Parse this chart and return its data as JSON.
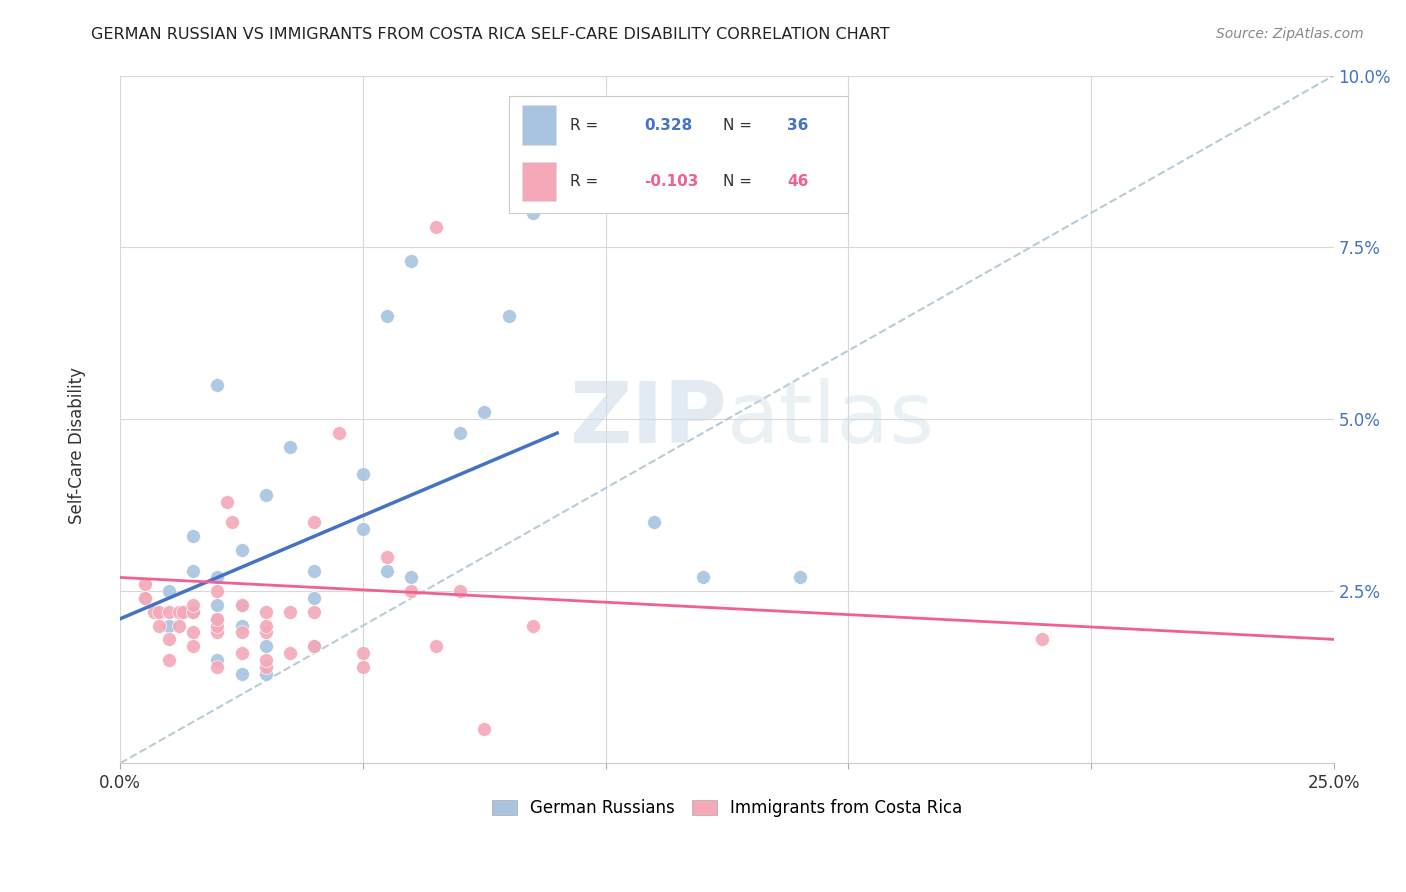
{
  "title": "GERMAN RUSSIAN VS IMMIGRANTS FROM COSTA RICA SELF-CARE DISABILITY CORRELATION CHART",
  "source": "Source: ZipAtlas.com",
  "ylabel": "Self-Care Disability",
  "xlim": [
    0.0,
    0.25
  ],
  "ylim": [
    0.0,
    0.1
  ],
  "xticks": [
    0.0,
    0.05,
    0.1,
    0.15,
    0.2,
    0.25
  ],
  "yticks": [
    0.0,
    0.025,
    0.05,
    0.075,
    0.1
  ],
  "xtick_labels": [
    "0.0%",
    "",
    "",
    "",
    "",
    "25.0%"
  ],
  "ytick_labels": [
    "",
    "2.5%",
    "5.0%",
    "7.5%",
    "10.0%"
  ],
  "color_blue": "#a8c4e0",
  "color_pink": "#f4a8b8",
  "line_blue": "#4472c4",
  "line_pink": "#f06090",
  "line_dash": "#b8ccd8",
  "background_color": "#ffffff",
  "grid_color": "#d8d8d8",
  "blue_scatter_x": [
    0.005,
    0.01,
    0.01,
    0.015,
    0.015,
    0.015,
    0.02,
    0.02,
    0.02,
    0.02,
    0.02,
    0.025,
    0.025,
    0.025,
    0.025,
    0.03,
    0.03,
    0.03,
    0.035,
    0.04,
    0.04,
    0.04,
    0.05,
    0.05,
    0.055,
    0.055,
    0.06,
    0.06,
    0.07,
    0.075,
    0.08,
    0.085,
    0.09,
    0.11,
    0.12,
    0.14
  ],
  "blue_scatter_y": [
    0.024,
    0.02,
    0.025,
    0.022,
    0.028,
    0.033,
    0.015,
    0.021,
    0.023,
    0.027,
    0.055,
    0.013,
    0.02,
    0.023,
    0.031,
    0.013,
    0.017,
    0.039,
    0.046,
    0.017,
    0.024,
    0.028,
    0.034,
    0.042,
    0.028,
    0.065,
    0.027,
    0.073,
    0.048,
    0.051,
    0.065,
    0.08,
    0.09,
    0.035,
    0.027,
    0.027
  ],
  "pink_scatter_x": [
    0.005,
    0.005,
    0.007,
    0.008,
    0.008,
    0.01,
    0.01,
    0.01,
    0.012,
    0.012,
    0.013,
    0.015,
    0.015,
    0.015,
    0.015,
    0.02,
    0.02,
    0.02,
    0.02,
    0.02,
    0.022,
    0.023,
    0.025,
    0.025,
    0.025,
    0.03,
    0.03,
    0.03,
    0.03,
    0.03,
    0.035,
    0.035,
    0.04,
    0.04,
    0.04,
    0.045,
    0.05,
    0.05,
    0.055,
    0.06,
    0.065,
    0.07,
    0.075,
    0.085,
    0.19,
    0.065
  ],
  "pink_scatter_y": [
    0.024,
    0.026,
    0.022,
    0.02,
    0.022,
    0.015,
    0.018,
    0.022,
    0.02,
    0.022,
    0.022,
    0.017,
    0.019,
    0.022,
    0.023,
    0.014,
    0.019,
    0.02,
    0.021,
    0.025,
    0.038,
    0.035,
    0.016,
    0.019,
    0.023,
    0.014,
    0.015,
    0.019,
    0.02,
    0.022,
    0.016,
    0.022,
    0.017,
    0.022,
    0.035,
    0.048,
    0.014,
    0.016,
    0.03,
    0.025,
    0.017,
    0.025,
    0.005,
    0.02,
    0.018,
    0.078
  ],
  "blue_trend_x": [
    0.0,
    0.09
  ],
  "blue_trend_y": [
    0.021,
    0.048
  ],
  "pink_trend_x": [
    0.0,
    0.25
  ],
  "pink_trend_y": [
    0.027,
    0.018
  ],
  "dash_line_x": [
    0.0,
    0.25
  ],
  "dash_line_y": [
    0.0,
    0.1
  ],
  "watermark_zip": "ZIP",
  "watermark_atlas": "atlas",
  "legend_label1": "German Russians",
  "legend_label2": "Immigrants from Costa Rica"
}
